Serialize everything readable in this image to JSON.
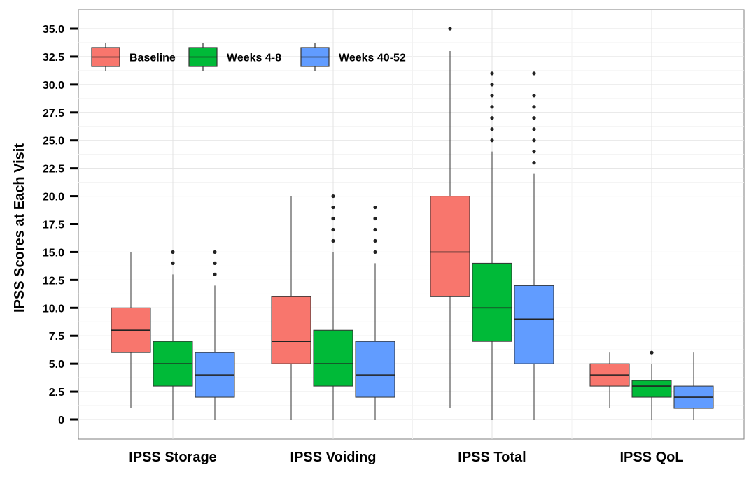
{
  "chart_data": {
    "type": "boxplot",
    "title": "",
    "xlabel": "",
    "ylabel": "IPSS Scores at Each Visit",
    "ylim": [
      0,
      35
    ],
    "yticks": [
      "0",
      "2.5",
      "5.0",
      "7.5",
      "10.0",
      "12.5",
      "15.0",
      "17.5",
      "20.0",
      "22.5",
      "25.0",
      "27.5",
      "30.0",
      "32.5",
      "35.0"
    ],
    "grid": true,
    "legend_position": "top-left",
    "categories": [
      "IPSS Storage",
      "IPSS Voiding",
      "IPSS Total",
      "IPSS QoL"
    ],
    "series": [
      {
        "name": "Baseline",
        "color": "#F8766D",
        "boxes": [
          {
            "whisker_low": 1,
            "q1": 6,
            "median": 8,
            "q3": 10,
            "whisker_high": 15,
            "outliers": []
          },
          {
            "whisker_low": 0,
            "q1": 5,
            "median": 7,
            "q3": 11,
            "whisker_high": 20,
            "outliers": []
          },
          {
            "whisker_low": 1,
            "q1": 11,
            "median": 15,
            "q3": 20,
            "whisker_high": 33,
            "outliers": [
              35
            ]
          },
          {
            "whisker_low": 1,
            "q1": 3,
            "median": 4,
            "q3": 5,
            "whisker_high": 6,
            "outliers": []
          }
        ]
      },
      {
        "name": "Weeks 4-8",
        "color": "#00BA38",
        "boxes": [
          {
            "whisker_low": 0,
            "q1": 3,
            "median": 5,
            "q3": 7,
            "whisker_high": 13,
            "outliers": [
              14,
              15
            ]
          },
          {
            "whisker_low": 0,
            "q1": 3,
            "median": 5,
            "q3": 8,
            "whisker_high": 15,
            "outliers": [
              16,
              17,
              18,
              19,
              20
            ]
          },
          {
            "whisker_low": 0,
            "q1": 7,
            "median": 10,
            "q3": 14,
            "whisker_high": 24,
            "outliers": [
              25,
              26,
              27,
              28,
              29,
              30,
              31
            ]
          },
          {
            "whisker_low": 0,
            "q1": 2,
            "median": 3,
            "q3": 3.5,
            "whisker_high": 5,
            "outliers": [
              6
            ]
          }
        ]
      },
      {
        "name": "Weeks 40-52",
        "color": "#619CFF",
        "boxes": [
          {
            "whisker_low": 0,
            "q1": 2,
            "median": 4,
            "q3": 6,
            "whisker_high": 12,
            "outliers": [
              13,
              14,
              15
            ]
          },
          {
            "whisker_low": 0,
            "q1": 2,
            "median": 4,
            "q3": 7,
            "whisker_high": 14,
            "outliers": [
              15,
              16,
              17,
              18,
              19
            ]
          },
          {
            "whisker_low": 0,
            "q1": 5,
            "median": 9,
            "q3": 12,
            "whisker_high": 22,
            "outliers": [
              23,
              24,
              25,
              26,
              27,
              28,
              29,
              31
            ]
          },
          {
            "whisker_low": 0,
            "q1": 1,
            "median": 2,
            "q3": 3,
            "whisker_high": 6,
            "outliers": []
          }
        ]
      }
    ]
  }
}
